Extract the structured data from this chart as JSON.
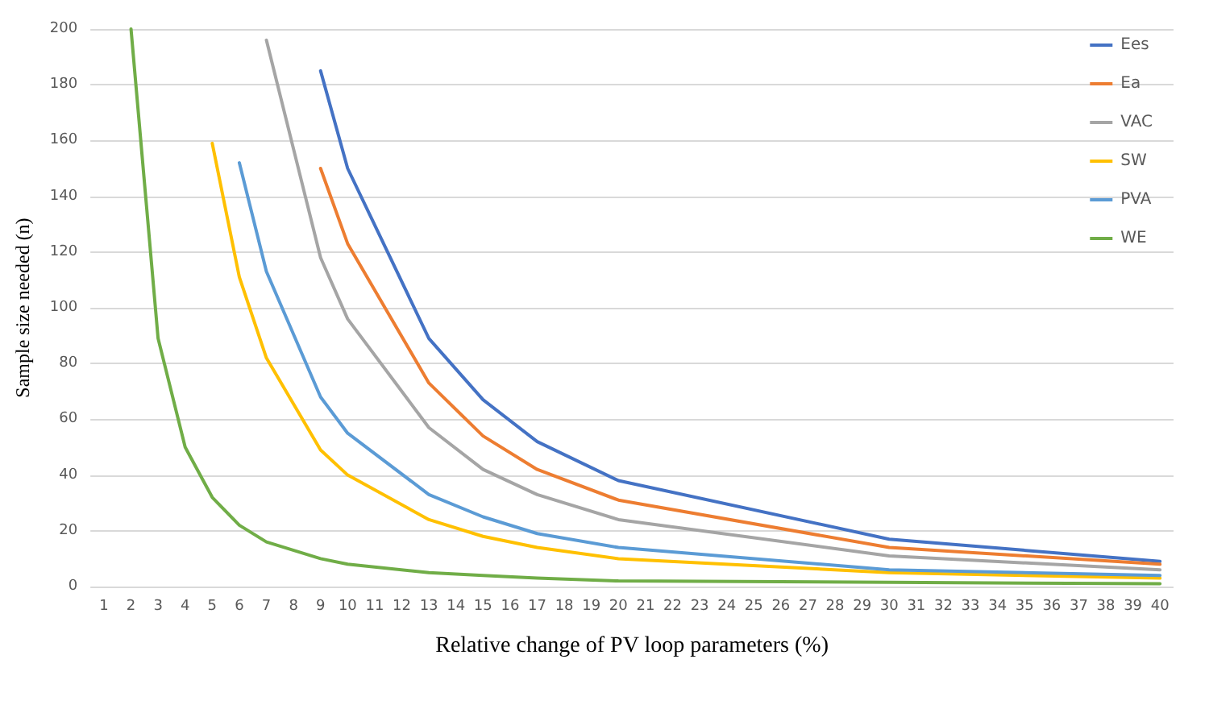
{
  "chart_data": {
    "type": "line",
    "xlabel": "Relative change of PV loop parameters (%)",
    "ylabel": "Sample size needed (n)",
    "x": [
      2,
      3,
      4,
      5,
      6,
      7,
      9,
      10,
      13,
      15,
      17,
      20,
      30,
      40
    ],
    "series": [
      {
        "name": "Ees",
        "color": "#4472c4",
        "values": [
          null,
          null,
          null,
          null,
          null,
          null,
          185,
          150,
          89,
          67,
          52,
          38,
          17,
          9
        ]
      },
      {
        "name": "Ea",
        "color": "#ed7d31",
        "values": [
          null,
          null,
          null,
          null,
          null,
          null,
          150,
          123,
          73,
          54,
          42,
          31,
          14,
          8
        ]
      },
      {
        "name": "VAC",
        "color": "#a5a5a5",
        "values": [
          null,
          null,
          null,
          null,
          null,
          196,
          118,
          96,
          57,
          42,
          33,
          24,
          11,
          6
        ]
      },
      {
        "name": "SW",
        "color": "#ffc000",
        "values": [
          null,
          null,
          null,
          159,
          111,
          82,
          49,
          40,
          24,
          18,
          14,
          10,
          5,
          3
        ]
      },
      {
        "name": "PVA",
        "color": "#5b9bd5",
        "values": [
          null,
          null,
          null,
          null,
          152,
          113,
          68,
          55,
          33,
          25,
          19,
          14,
          6,
          4
        ]
      },
      {
        "name": "WE",
        "color": "#70ad47",
        "values": [
          200,
          89,
          50,
          32,
          22,
          16,
          10,
          8,
          5,
          4,
          3,
          2,
          1.5,
          1
        ]
      }
    ],
    "xlim": [
      0.5,
      40.5
    ],
    "xticks": [
      1,
      2,
      3,
      4,
      5,
      6,
      7,
      8,
      9,
      10,
      11,
      12,
      13,
      14,
      15,
      16,
      17,
      18,
      19,
      20,
      21,
      22,
      23,
      24,
      25,
      26,
      27,
      28,
      29,
      30,
      31,
      32,
      33,
      34,
      35,
      36,
      37,
      38,
      39,
      40
    ],
    "ylim": [
      0,
      200
    ],
    "yticks": [
      0,
      20,
      40,
      60,
      80,
      100,
      120,
      140,
      160,
      180,
      200
    ],
    "grid": "y",
    "legend": "top right",
    "marker": "none",
    "line_style": "solid"
  }
}
